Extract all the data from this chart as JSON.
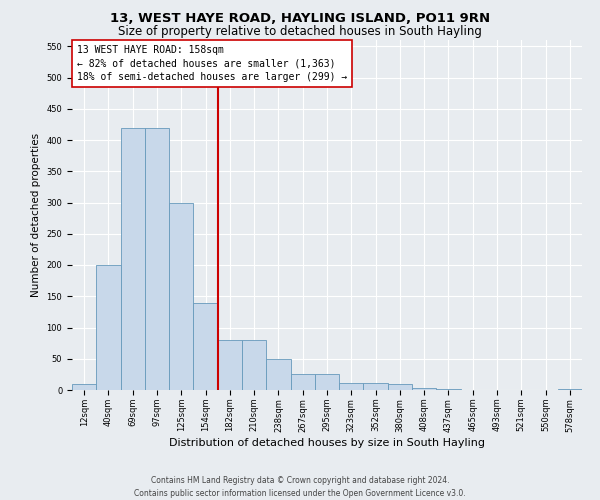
{
  "title1": "13, WEST HAYE ROAD, HAYLING ISLAND, PO11 9RN",
  "title2": "Size of property relative to detached houses in South Hayling",
  "xlabel": "Distribution of detached houses by size in South Hayling",
  "ylabel": "Number of detached properties",
  "categories": [
    "12sqm",
    "40sqm",
    "69sqm",
    "97sqm",
    "125sqm",
    "154sqm",
    "182sqm",
    "210sqm",
    "238sqm",
    "267sqm",
    "295sqm",
    "323sqm",
    "352sqm",
    "380sqm",
    "408sqm",
    "437sqm",
    "465sqm",
    "493sqm",
    "521sqm",
    "550sqm",
    "578sqm"
  ],
  "values": [
    10,
    200,
    420,
    420,
    300,
    140,
    80,
    80,
    50,
    25,
    25,
    12,
    12,
    10,
    3,
    2,
    0,
    0,
    0,
    0,
    2
  ],
  "bar_color": "#c8d8ea",
  "bar_edge_color": "#6699bb",
  "vline_pos": 5.5,
  "vline_color": "#cc0000",
  "ylim": [
    0,
    560
  ],
  "yticks": [
    0,
    50,
    100,
    150,
    200,
    250,
    300,
    350,
    400,
    450,
    500,
    550
  ],
  "annotation_title": "13 WEST HAYE ROAD: 158sqm",
  "annotation_line1": "← 82% of detached houses are smaller (1,363)",
  "annotation_line2": "18% of semi-detached houses are larger (299) →",
  "annotation_box_color": "#cc0000",
  "footer1": "Contains HM Land Registry data © Crown copyright and database right 2024.",
  "footer2": "Contains public sector information licensed under the Open Government Licence v3.0.",
  "fig_bg_color": "#e8ecf0",
  "plot_bg_color": "#e8ecf0",
  "grid_color": "#ffffff",
  "title1_fontsize": 9.5,
  "title2_fontsize": 8.5,
  "ylabel_fontsize": 7.5,
  "xlabel_fontsize": 8,
  "tick_fontsize": 6,
  "annotation_fontsize": 7,
  "footer_fontsize": 5.5
}
